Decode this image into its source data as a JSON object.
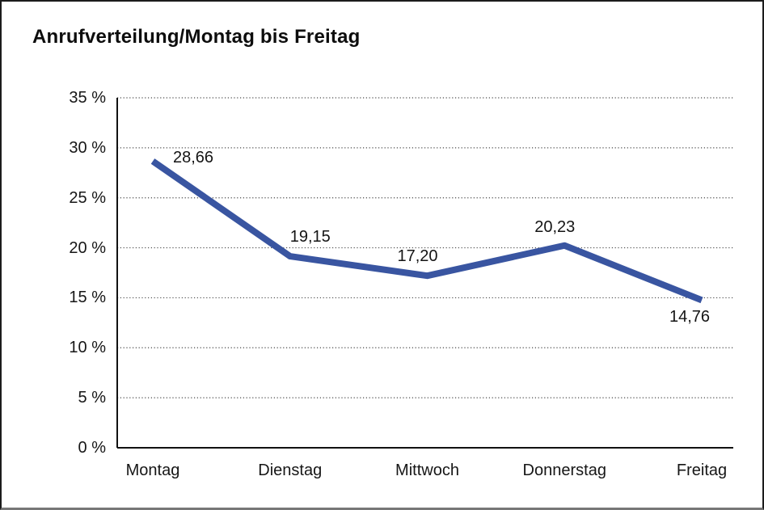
{
  "title": "Anrufverteilung/Montag bis Freitag",
  "chart_data": {
    "type": "line",
    "title": "Anrufverteilung/Montag bis Freitag",
    "categories": [
      "Montag",
      "Dienstag",
      "Mittwoch",
      "Donnerstag",
      "Freitag"
    ],
    "series": [
      {
        "name": "Anrufverteilung",
        "values": [
          28.66,
          19.15,
          17.2,
          20.23,
          14.76
        ]
      }
    ],
    "value_labels": [
      "28,66",
      "19,15",
      "17,20",
      "20,23",
      "14,76"
    ],
    "xlabel": "",
    "ylabel": "",
    "ylim": [
      0,
      35
    ],
    "y_tick_values": [
      35,
      30,
      25,
      20,
      15,
      10,
      5,
      0
    ],
    "y_tick_labels": [
      "35 %",
      "30 %",
      "25 %",
      "20 %",
      "15 %",
      "10 %",
      "5 %",
      "0 %"
    ],
    "grid": "horizontal-dotted",
    "legend": "none",
    "line_color": "#3955A1",
    "axis_color": "#111111",
    "grid_color": "#4a4a4a",
    "label_color": "#141414"
  }
}
